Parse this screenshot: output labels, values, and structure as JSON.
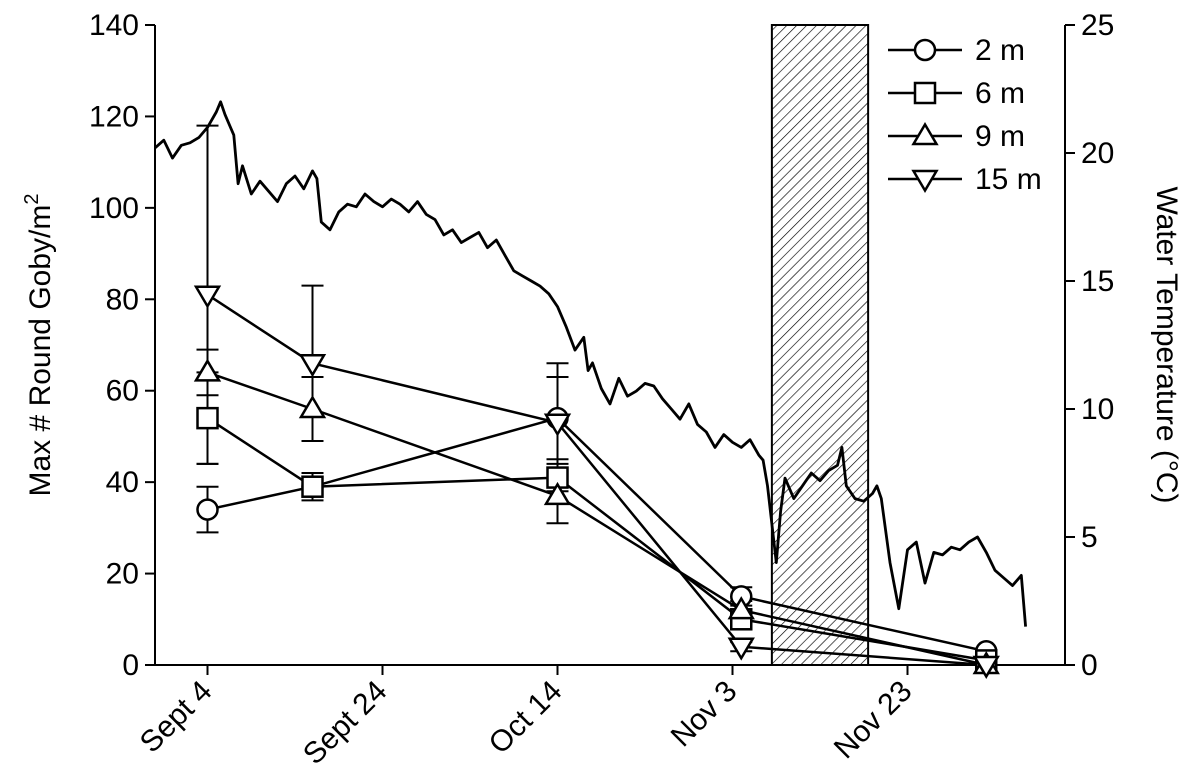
{
  "chart_data": {
    "type": "line",
    "title": "",
    "x_tick_labels": [
      "Sept 4",
      "Sept 24",
      "Oct 14",
      "Nov 3",
      "Nov 23"
    ],
    "x_tick_days": [
      0,
      20,
      40,
      60,
      80
    ],
    "xlim_days": [
      -6,
      98
    ],
    "ylabel_left": "Max # Round Goby/m²",
    "ylabel_left_main": "Max # Round Goby/m",
    "ylabel_left_sup": "2",
    "ylim_left": [
      0,
      140
    ],
    "yticks_left": [
      "0",
      "20",
      "40",
      "60",
      "80",
      "100",
      "120",
      "140"
    ],
    "ylabel_right": "Water Temperature (°C)",
    "ylim_right": [
      0,
      25
    ],
    "yticks_right": [
      "0",
      "5",
      "10",
      "15",
      "20",
      "25"
    ],
    "legend_position": "top-right",
    "shaded_region_days": [
      64.5,
      75.5
    ],
    "series": [
      {
        "name": "2 m",
        "marker": "circle",
        "x_days": [
          0,
          12,
          40,
          61,
          89
        ],
        "y": [
          34,
          39,
          54,
          15,
          3
        ],
        "err": [
          5,
          2,
          9,
          2,
          0
        ]
      },
      {
        "name": "6 m",
        "marker": "square",
        "x_days": [
          0,
          12,
          40,
          61,
          89
        ],
        "y": [
          54,
          39,
          41,
          10,
          1
        ],
        "err": [
          10,
          3,
          3,
          2,
          0
        ]
      },
      {
        "name": "9 m",
        "marker": "triangle-up",
        "x_days": [
          0,
          12,
          40,
          61,
          89
        ],
        "y": [
          64,
          56,
          37,
          12,
          0
        ],
        "err": [
          5,
          7,
          6,
          2,
          0
        ]
      },
      {
        "name": "15 m",
        "marker": "triangle-down",
        "x_days": [
          0,
          12,
          40,
          61,
          89
        ],
        "y": [
          81,
          66,
          53,
          4,
          0
        ],
        "err": [
          37,
          17,
          13,
          1,
          0
        ]
      }
    ],
    "temperature_series": {
      "x_days": [
        -6,
        -5,
        -4,
        -3,
        -2,
        -1,
        0,
        1,
        1.5,
        2,
        3,
        3.5,
        4,
        5,
        6,
        7,
        8,
        9,
        10,
        11,
        12,
        12.5,
        13,
        14,
        15,
        16,
        17,
        18,
        19,
        20,
        21,
        22,
        23,
        24,
        25,
        26,
        27,
        28,
        29,
        30,
        31,
        32,
        33,
        34,
        35,
        36,
        37,
        38,
        39,
        40,
        41,
        42,
        43,
        43.5,
        44,
        45,
        46,
        47,
        48,
        49,
        50,
        51,
        52,
        53,
        54,
        55,
        56,
        57,
        58,
        59,
        60,
        61,
        62,
        63,
        63.5,
        64,
        65,
        65.5,
        66,
        67,
        68,
        69,
        70,
        71,
        72,
        72.5,
        73,
        74,
        75,
        76,
        76.5,
        77,
        78,
        79,
        80,
        81,
        82,
        83,
        84,
        85,
        86,
        87,
        88,
        89,
        90,
        91,
        92,
        93,
        93.5
      ],
      "temps": [
        20.2,
        20.5,
        19.8,
        20.3,
        20.4,
        20.6,
        21.0,
        21.6,
        22.0,
        21.5,
        20.7,
        18.8,
        19.5,
        18.4,
        18.9,
        18.5,
        18.1,
        18.8,
        19.1,
        18.6,
        19.3,
        19.0,
        17.3,
        17.0,
        17.7,
        18.0,
        17.9,
        18.4,
        18.1,
        17.9,
        18.2,
        18.0,
        17.7,
        18.1,
        17.6,
        17.4,
        16.8,
        17.0,
        16.5,
        16.7,
        16.9,
        16.3,
        16.6,
        16.0,
        15.4,
        15.2,
        15.0,
        14.8,
        14.5,
        14.0,
        13.2,
        12.3,
        12.8,
        11.5,
        11.8,
        10.8,
        10.2,
        11.2,
        10.5,
        10.7,
        11.0,
        10.9,
        10.4,
        10.0,
        9.6,
        10.2,
        9.4,
        9.1,
        8.5,
        9.0,
        8.7,
        8.5,
        8.8,
        8.2,
        8.0,
        7.0,
        4.0,
        6.0,
        7.3,
        6.5,
        7.0,
        7.5,
        7.2,
        7.6,
        7.8,
        8.5,
        7.0,
        6.5,
        6.4,
        6.7,
        7.0,
        6.5,
        4.0,
        2.2,
        4.5,
        4.8,
        3.2,
        4.4,
        4.3,
        4.6,
        4.5,
        4.8,
        5.0,
        4.4,
        3.7,
        3.4,
        3.1,
        3.5,
        1.5
      ]
    }
  }
}
